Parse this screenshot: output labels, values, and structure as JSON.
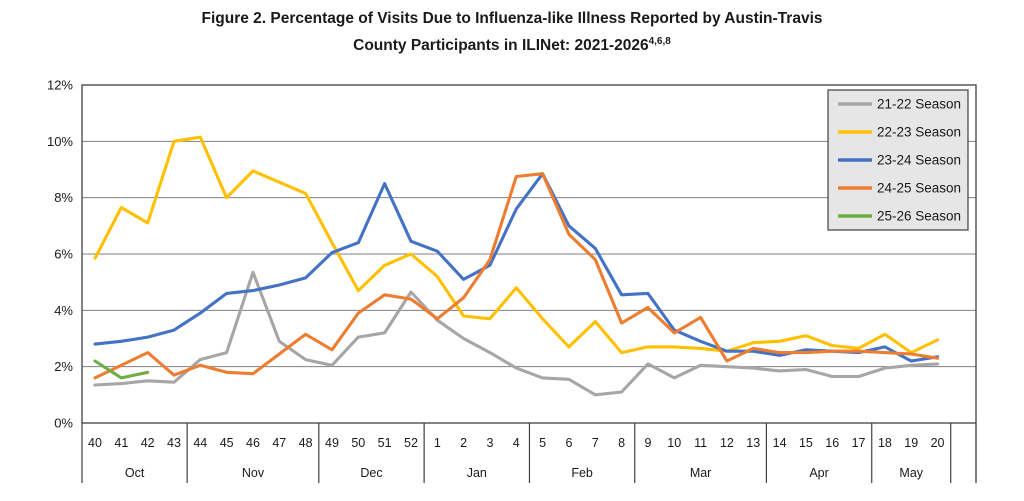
{
  "title": {
    "line1": "Figure 2. Percentage of Visits Due to Influenza-like Illness Reported by Austin-Travis",
    "line2": "County Participants in ILINet: 2021-2026",
    "superscript": "4,6,8"
  },
  "chart_data": {
    "type": "line",
    "title": "Figure 2. Percentage of Visits Due to Influenza-like Illness Reported by Austin-Travis County Participants in ILINet: 2021-2026",
    "title_superscript": "4,6,8",
    "grid": true,
    "legend_position": "top-right",
    "y_ticks": [
      "0%",
      "2%",
      "4%",
      "6%",
      "8%",
      "10%",
      "12%"
    ],
    "y_max": 12,
    "ylim": [
      0,
      12
    ],
    "x_weeks": [
      40,
      41,
      42,
      43,
      44,
      45,
      46,
      47,
      48,
      49,
      50,
      51,
      52,
      1,
      2,
      3,
      4,
      5,
      6,
      7,
      8,
      9,
      10,
      11,
      12,
      13,
      14,
      15,
      16,
      17,
      18,
      19,
      20
    ],
    "month_groups": [
      {
        "label": "Oct",
        "weeks": 4
      },
      {
        "label": "Nov",
        "weeks": 5
      },
      {
        "label": "Dec",
        "weeks": 4
      },
      {
        "label": "Jan",
        "weeks": 4
      },
      {
        "label": "Feb",
        "weeks": 4
      },
      {
        "label": "Mar",
        "weeks": 5
      },
      {
        "label": "Apr",
        "weeks": 4
      },
      {
        "label": "May",
        "weeks": 3
      },
      {
        "label": "",
        "weeks": 1
      }
    ],
    "series": [
      {
        "name": "21-22 Season",
        "color": "#A6A6A6",
        "values": [
          1.35,
          1.4,
          1.5,
          1.45,
          2.25,
          2.5,
          5.35,
          2.9,
          2.25,
          2.05,
          3.05,
          3.2,
          4.65,
          3.65,
          3.0,
          2.5,
          1.95,
          1.6,
          1.55,
          1.0,
          1.1,
          2.1,
          1.6,
          2.05,
          2.0,
          1.95,
          1.85,
          1.9,
          1.65,
          1.65,
          1.95,
          2.05,
          2.1
        ]
      },
      {
        "name": "22-23 Season",
        "color": "#FFC000",
        "values": [
          5.85,
          7.65,
          7.1,
          10.0,
          10.15,
          8.0,
          8.95,
          8.55,
          8.15,
          6.4,
          4.7,
          5.6,
          6.0,
          5.2,
          3.8,
          3.7,
          4.8,
          3.7,
          2.7,
          3.6,
          2.5,
          2.7,
          2.7,
          2.65,
          2.55,
          2.85,
          2.9,
          3.1,
          2.75,
          2.65,
          3.15,
          2.5,
          2.95
        ]
      },
      {
        "name": "23-24 Season",
        "color": "#4472C4",
        "values": [
          2.8,
          2.9,
          3.05,
          3.3,
          3.9,
          4.6,
          4.7,
          4.9,
          5.15,
          6.05,
          6.4,
          8.5,
          6.45,
          6.1,
          5.1,
          5.6,
          7.6,
          8.85,
          7.0,
          6.2,
          4.55,
          4.6,
          3.3,
          2.9,
          2.55,
          2.55,
          2.4,
          2.6,
          2.55,
          2.5,
          2.7,
          2.2,
          2.35
        ]
      },
      {
        "name": "24-25 Season",
        "color": "#ED7D31",
        "values": [
          1.6,
          2.05,
          2.5,
          1.7,
          2.05,
          1.8,
          1.75,
          2.45,
          3.15,
          2.6,
          3.9,
          4.55,
          4.4,
          3.7,
          4.45,
          5.8,
          8.75,
          8.85,
          6.7,
          5.8,
          3.55,
          4.1,
          3.2,
          3.75,
          2.2,
          2.65,
          2.5,
          2.5,
          2.55,
          2.55,
          2.5,
          2.45,
          2.3
        ]
      },
      {
        "name": "25-26 Season",
        "color": "#70AD47",
        "values": [
          2.2,
          1.6,
          1.8
        ]
      }
    ],
    "colors": {
      "plot_border": "#404040",
      "gridline": "#808080",
      "legend_fill": "#E7E6E6",
      "text": "#1a1a1a"
    }
  }
}
